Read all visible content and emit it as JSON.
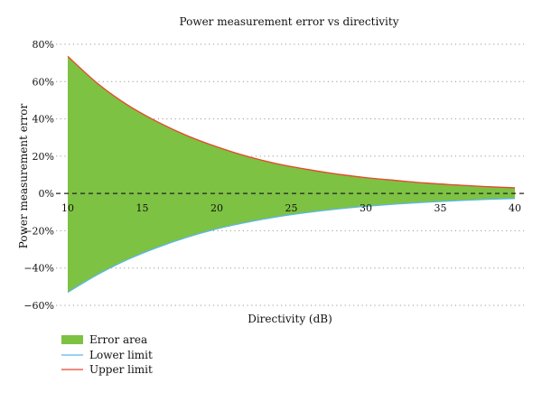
{
  "chart_data": {
    "type": "area",
    "title": "Power measurement error vs directivity",
    "xlabel": "Directivity (dB)",
    "ylabel": "Power measurement error",
    "xlim": [
      10,
      40
    ],
    "ylim": [
      -60,
      80
    ],
    "x_ticks": [
      10,
      15,
      20,
      25,
      30,
      35,
      40
    ],
    "y_ticks": [
      80,
      60,
      40,
      20,
      0,
      -20,
      -40,
      -60
    ],
    "y_tick_labels": [
      "80%",
      "60%",
      "40%",
      "20%",
      "0%",
      "−20%",
      "−40%",
      "−60%"
    ],
    "grid": "horizontal-dotted",
    "zero_line": "dashed",
    "legend_position": "bottom-left",
    "x": [
      10,
      12,
      14,
      16,
      18,
      20,
      22,
      24,
      26,
      28,
      30,
      32,
      34,
      36,
      38,
      40
    ],
    "series": [
      {
        "name": "Error area",
        "kind": "fill-between",
        "color": "#7dc242"
      },
      {
        "name": "Lower limit",
        "kind": "line",
        "color": "#5bb8e8",
        "values": [
          -53.0,
          -43.5,
          -35.5,
          -29.0,
          -23.5,
          -19.0,
          -15.5,
          -12.6,
          -10.3,
          -8.4,
          -6.9,
          -5.7,
          -4.7,
          -3.9,
          -3.2,
          -2.7
        ]
      },
      {
        "name": "Upper limit",
        "kind": "line",
        "color": "#e8452c",
        "values": [
          73.5,
          59.0,
          47.5,
          38.5,
          31.0,
          25.0,
          20.0,
          16.0,
          13.0,
          10.5,
          8.5,
          7.0,
          5.6,
          4.6,
          3.7,
          3.0
        ]
      }
    ]
  }
}
